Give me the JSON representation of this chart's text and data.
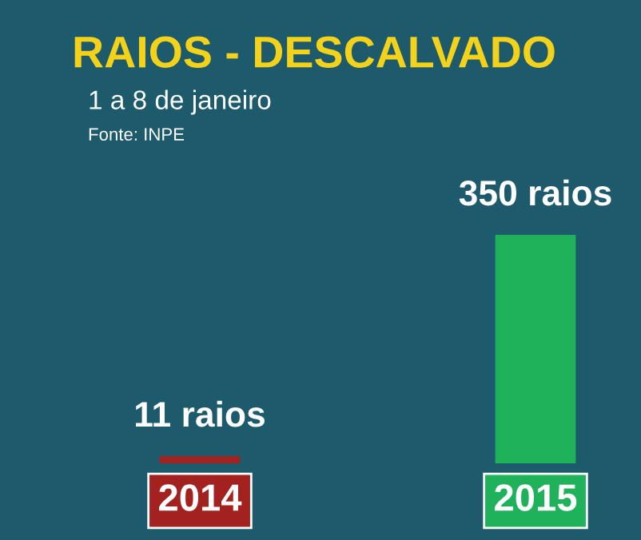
{
  "chart_data": {
    "type": "bar",
    "title": "RAIOS - DESCALVADO",
    "subtitle": "1 a 8 de janeiro",
    "annotations": [
      "Fonte: INPE"
    ],
    "categories": [
      "2014",
      "2015"
    ],
    "values": [
      11,
      350
    ],
    "colors": [
      "#a3221f",
      "#1fb25a"
    ],
    "value_labels": [
      "11 raios",
      "350 raios"
    ]
  }
}
